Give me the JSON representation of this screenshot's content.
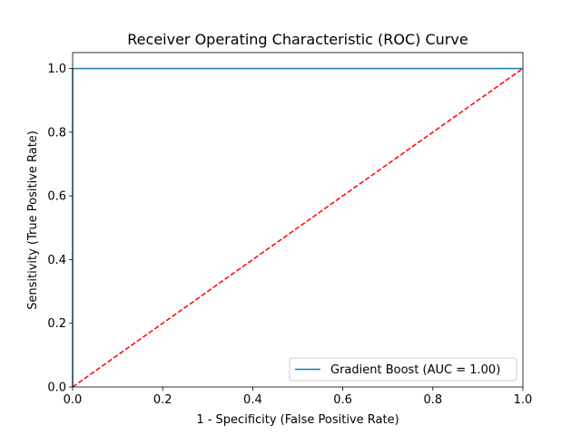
{
  "chart_data": {
    "type": "line",
    "title": "Receiver Operating Characteristic (ROC) Curve",
    "xlabel": "1 - Specificity (False Positive Rate)",
    "ylabel": "Sensitivity (True Positive Rate)",
    "xlim": [
      0,
      1
    ],
    "ylim": [
      0,
      1.05
    ],
    "xticks": [
      "0.0",
      "0.2",
      "0.4",
      "0.6",
      "0.8",
      "1.0"
    ],
    "yticks": [
      "0.0",
      "0.2",
      "0.4",
      "0.6",
      "0.8",
      "1.0"
    ],
    "grid": false,
    "legend_position": "lower-right",
    "series": [
      {
        "name": "Gradient Boost (AUC = 1.00)",
        "color": "#1f77b4",
        "style": "solid",
        "x": [
          0,
          0,
          1
        ],
        "y": [
          0,
          1,
          1
        ]
      },
      {
        "color": "#ff0000",
        "style": "dashed",
        "x": [
          0,
          1
        ],
        "y": [
          0,
          1
        ]
      }
    ]
  }
}
